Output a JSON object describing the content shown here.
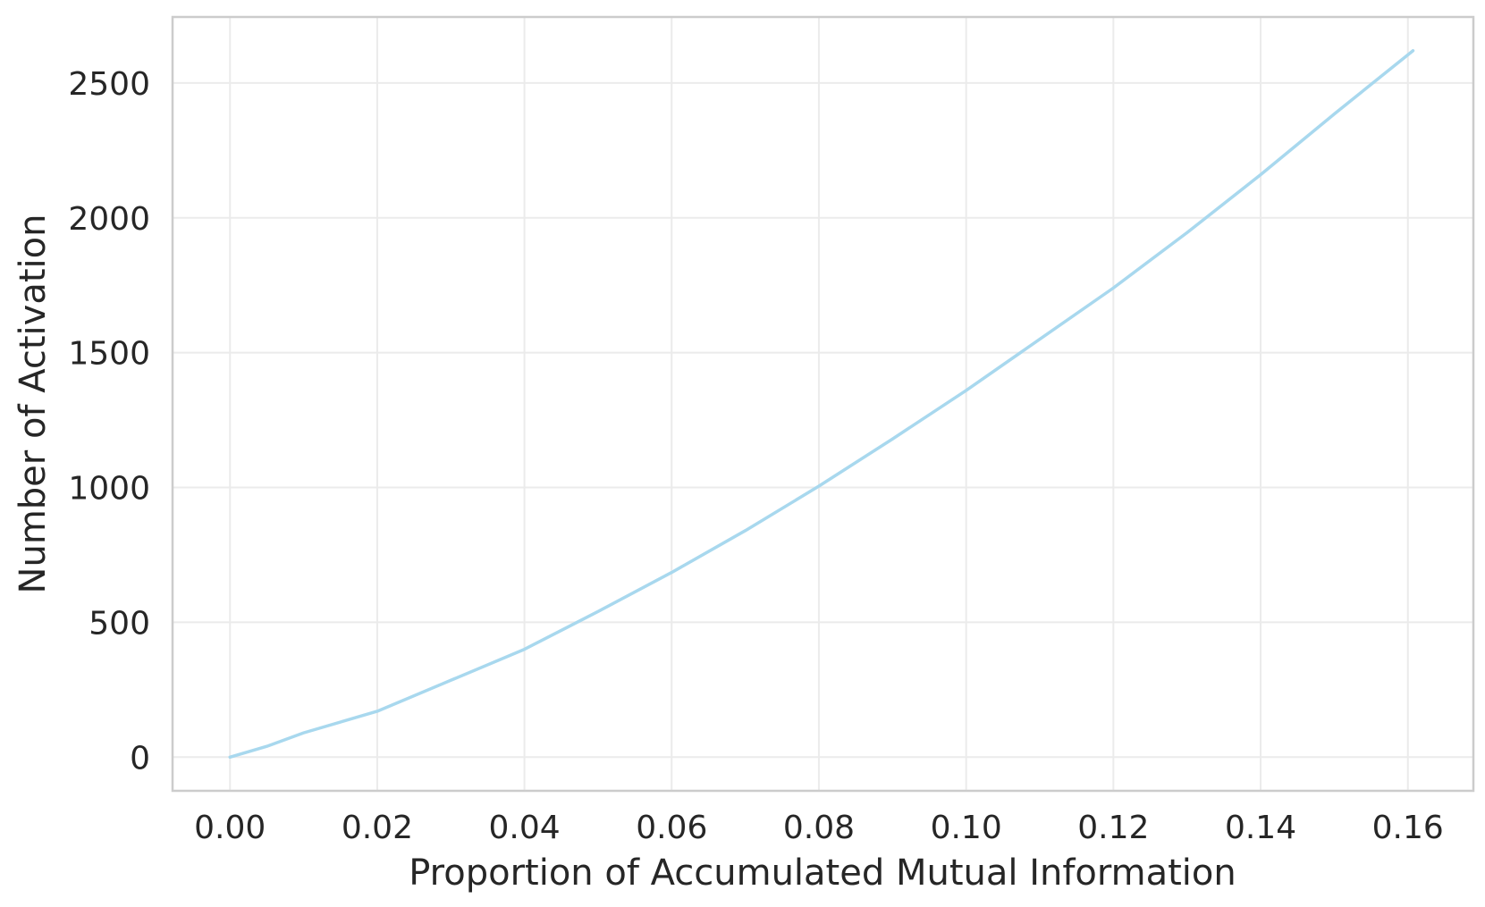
{
  "chart_data": {
    "type": "line",
    "xlabel": "Proportion of Accumulated Mutual Information",
    "ylabel": "Number of Activation",
    "xlim": [
      -0.0078,
      0.1689
    ],
    "ylim": [
      -125,
      2745
    ],
    "xticks": [
      0.0,
      0.02,
      0.04,
      0.06,
      0.08,
      0.1,
      0.12,
      0.14,
      0.16
    ],
    "xtick_labels": [
      "0.00",
      "0.02",
      "0.04",
      "0.06",
      "0.08",
      "0.10",
      "0.12",
      "0.14",
      "0.16"
    ],
    "yticks": [
      0,
      500,
      1000,
      1500,
      2000,
      2500
    ],
    "ytick_labels": [
      "0",
      "500",
      "1000",
      "1500",
      "2000",
      "2500"
    ],
    "grid": true,
    "series": [
      {
        "color": "#a8d8ee",
        "x": [
          0.0,
          0.005,
          0.01,
          0.02,
          0.03,
          0.04,
          0.05,
          0.06,
          0.07,
          0.08,
          0.09,
          0.1,
          0.11,
          0.12,
          0.13,
          0.14,
          0.15,
          0.1607
        ],
        "y": [
          0,
          40,
          90,
          170,
          285,
          400,
          540,
          685,
          840,
          1005,
          1180,
          1360,
          1550,
          1740,
          1945,
          2160,
          2385,
          2620
        ]
      }
    ]
  },
  "colors": {
    "frame": "#cccccc",
    "grid": "#ebebeb",
    "text": "#262626"
  }
}
